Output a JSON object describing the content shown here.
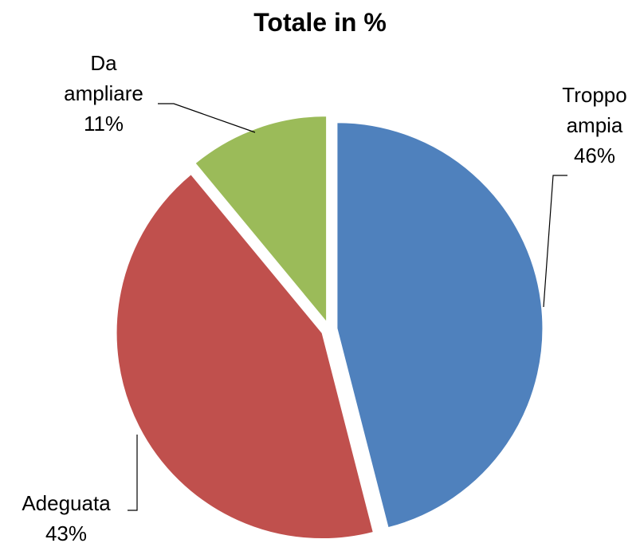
{
  "chart_data": {
    "type": "pie",
    "title": "Totale in %",
    "categories": [
      "Troppo ampia",
      "Adeguata",
      "Da ampliare"
    ],
    "values": [
      46,
      43,
      11
    ],
    "value_labels": [
      "46%",
      "43%",
      "11%"
    ],
    "colors": [
      "#4f81bd",
      "#c0504d",
      "#9bbb59"
    ]
  }
}
